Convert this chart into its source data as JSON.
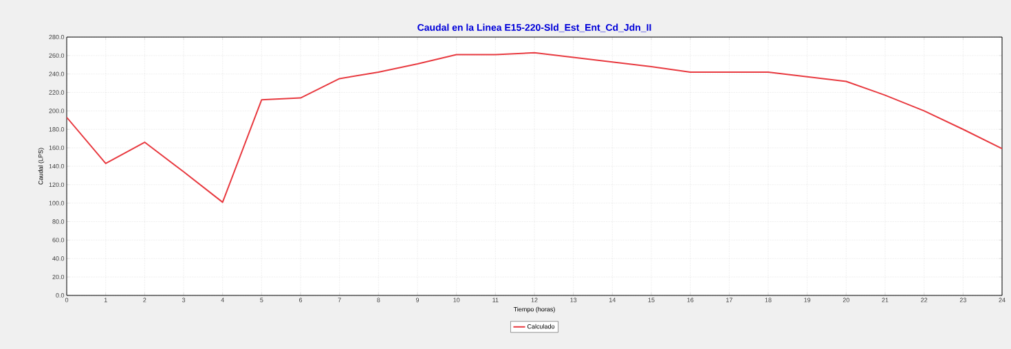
{
  "chart_data": {
    "type": "line",
    "title": "Caudal en la Linea E15-220-Sld_Est_Ent_Cd_Jdn_II",
    "xlabel": "Tiempo (horas)",
    "ylabel": "Caudal (LPS)",
    "x": [
      0,
      1,
      2,
      3,
      4,
      5,
      6,
      7,
      8,
      9,
      10,
      11,
      12,
      13,
      14,
      15,
      16,
      17,
      18,
      19,
      20,
      21,
      22,
      23,
      24
    ],
    "series": [
      {
        "name": "Calculado",
        "color": "#e8393f",
        "values": [
          193,
          143,
          166,
          134,
          101,
          212,
          214,
          235,
          242,
          251,
          261,
          261,
          263,
          258,
          253,
          248,
          242,
          242,
          242,
          237,
          232,
          217,
          200,
          180,
          159
        ]
      }
    ],
    "xlim": [
      0,
      24
    ],
    "xticks": [
      0,
      1,
      2,
      3,
      4,
      5,
      6,
      7,
      8,
      9,
      10,
      11,
      12,
      13,
      14,
      15,
      16,
      17,
      18,
      19,
      20,
      21,
      22,
      23,
      24
    ],
    "ylim": [
      0,
      280
    ],
    "yticks": [
      {
        "value": 0,
        "label": "0.0"
      },
      {
        "value": 20,
        "label": "20.0"
      },
      {
        "value": 40,
        "label": "40.0"
      },
      {
        "value": 60,
        "label": "60.0"
      },
      {
        "value": 80,
        "label": "80.0"
      },
      {
        "value": 100,
        "label": "100.0"
      },
      {
        "value": 120,
        "label": "120.0"
      },
      {
        "value": 140,
        "label": "140.0"
      },
      {
        "value": 160,
        "label": "160.0"
      },
      {
        "value": 180,
        "label": "180.0"
      },
      {
        "value": 200,
        "label": "200.0"
      },
      {
        "value": 220,
        "label": "220.0"
      },
      {
        "value": 240,
        "label": "240.0"
      },
      {
        "value": 260,
        "label": "260.0"
      },
      {
        "value": 280,
        "label": "280.0"
      }
    ],
    "grid": true,
    "legend": "bottom",
    "marker": "none",
    "line_style": "solid"
  }
}
